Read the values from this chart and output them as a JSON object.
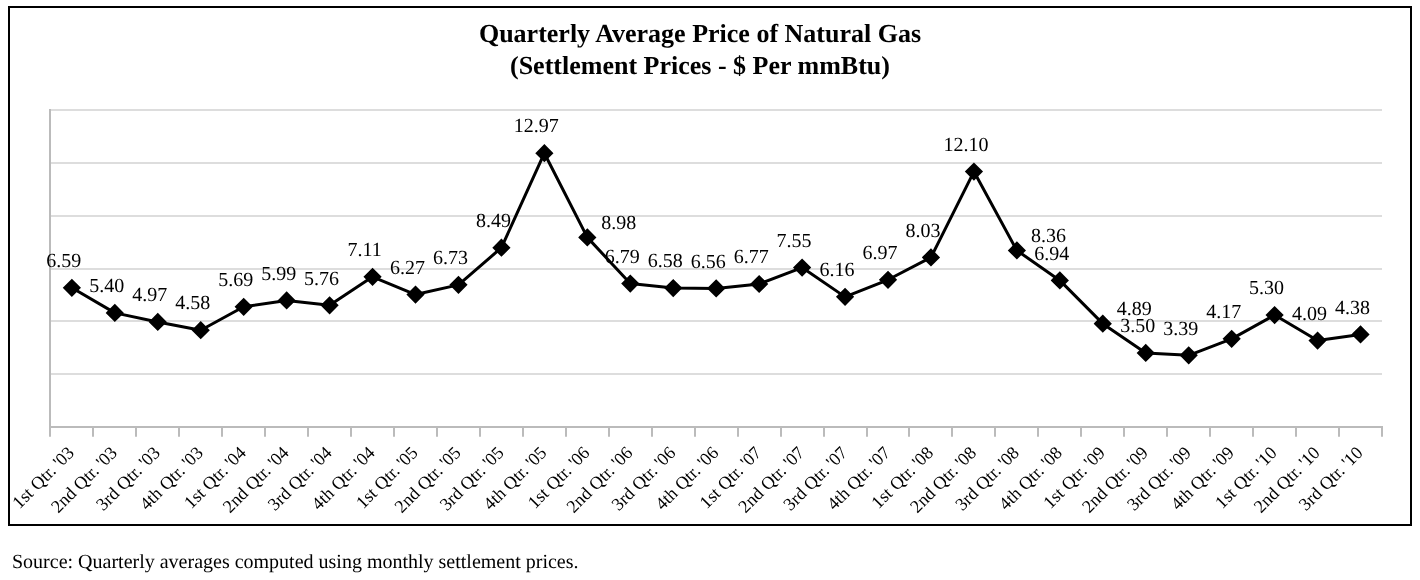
{
  "chart_data": {
    "type": "line",
    "title": "Quarterly Average Price of Natural Gas",
    "subtitle": "(Settlement Prices - $ Per mmBtu)",
    "categories": [
      "1st Qtr. '03",
      "2nd Qtr. '03",
      "3rd Qtr. '03",
      "4th Qtr. '03",
      "1st Qtr. '04",
      "2nd Qtr. '04",
      "3rd Qtr. '04",
      "4th Qtr. '04",
      "1st Qtr. '05",
      "2nd Qtr. '05",
      "3rd Qtr. '05",
      "4th Qtr. '05",
      "1st Qtr. '06",
      "2nd Qtr. '06",
      "3rd Qtr. '06",
      "4th Qtr. '06",
      "1st Qtr. '07",
      "2nd Qtr. '07",
      "3rd Qtr. '07",
      "4th Qtr. '07",
      "1st Qtr. '08",
      "2nd Qtr. '08",
      "3rd Qtr. '08",
      "4th Qtr. '08",
      "1st Qtr. '09",
      "2nd Qtr. '09",
      "3rd Qtr. '09",
      "4th Qtr. '09",
      "1st Qtr. '10",
      "2nd Qtr. '10",
      "3rd Qtr. '10"
    ],
    "values": [
      6.59,
      5.4,
      4.97,
      4.58,
      5.69,
      5.99,
      5.76,
      7.11,
      6.27,
      6.73,
      8.49,
      12.97,
      8.98,
      6.79,
      6.58,
      6.56,
      6.77,
      7.55,
      6.16,
      6.97,
      8.03,
      12.1,
      8.36,
      6.94,
      4.89,
      3.5,
      3.39,
      4.17,
      5.3,
      4.09,
      4.38
    ],
    "value_labels": [
      "6.59",
      "5.40",
      "4.97",
      "4.58",
      "5.69",
      "5.99",
      "5.76",
      "7.11",
      "6.27",
      "6.73",
      "8.49",
      "12.97",
      "8.98",
      "6.79",
      "6.58",
      "6.56",
      "6.77",
      "7.55",
      "6.16",
      "6.97",
      "8.03",
      "12.10",
      "8.36",
      "6.94",
      "4.89",
      "3.50",
      "3.39",
      "4.17",
      "5.30",
      "4.09",
      "4.38"
    ],
    "color": "#000000",
    "marker": "diamond",
    "ylim": [
      0,
      15
    ],
    "yticks": [
      {
        "value": 0,
        "label": null
      },
      {
        "value": 2.5,
        "label": null
      },
      {
        "value": 5,
        "label": null
      },
      {
        "value": 7.5,
        "label": null
      },
      {
        "value": 10,
        "label": null
      },
      {
        "value": 12.5,
        "label": null
      },
      {
        "value": 15,
        "label": null
      }
    ],
    "tick_labels": "x",
    "grid": "y",
    "annotations": [
      "Source:  Quarterly averages computed using monthly settlement prices."
    ]
  }
}
